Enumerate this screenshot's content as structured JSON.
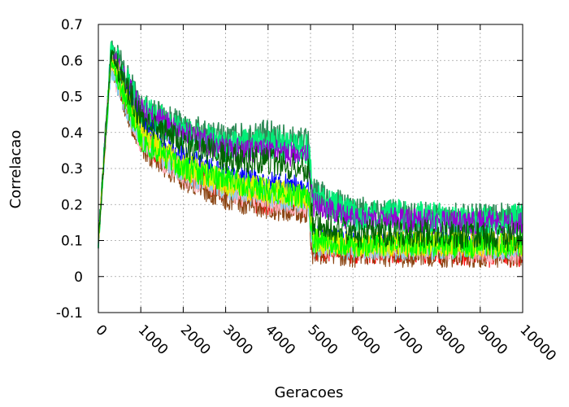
{
  "chart_data": {
    "type": "line",
    "xlabel": "Geracoes",
    "ylabel": "Correlacao",
    "xlim": [
      0,
      10000
    ],
    "ylim": [
      -0.1,
      0.7
    ],
    "x_ticks": [
      0,
      1000,
      2000,
      3000,
      4000,
      5000,
      6000,
      7000,
      8000,
      9000,
      10000
    ],
    "x_tick_labels": [
      "0",
      "1000",
      "2000",
      "3000",
      "4000",
      "5000",
      "6000",
      "7000",
      "8000",
      "9000",
      "10000"
    ],
    "y_ticks": [
      -0.1,
      0,
      0.1,
      0.2,
      0.3,
      0.4,
      0.5,
      0.6,
      0.7
    ],
    "y_tick_labels": [
      "-0.1",
      "0",
      "0.1",
      "0.2",
      "0.3",
      "0.4",
      "0.5",
      "0.6",
      "0.7"
    ],
    "x_tick_label_rotation_deg": 45,
    "grid": true,
    "grid_style": "dotted",
    "legend": "none",
    "series": [
      {
        "color": "#2e8b57",
        "x": [
          0,
          300,
          1000,
          2000,
          3000,
          4000,
          4950,
          5050,
          6000,
          7000,
          8000,
          9000,
          10000
        ],
        "y": [
          0.1,
          0.64,
          0.47,
          0.41,
          0.38,
          0.39,
          0.37,
          0.23,
          0.18,
          0.17,
          0.16,
          0.16,
          0.16
        ]
      },
      {
        "color": "#00ee77",
        "x": [
          0,
          300,
          1000,
          2000,
          3000,
          4000,
          4950,
          5050,
          6000,
          7000,
          8000,
          9000,
          10000
        ],
        "y": [
          0.1,
          0.63,
          0.46,
          0.4,
          0.36,
          0.37,
          0.35,
          0.22,
          0.17,
          0.17,
          0.16,
          0.15,
          0.16
        ]
      },
      {
        "color": "#006400",
        "x": [
          0,
          300,
          1000,
          2000,
          3000,
          4000,
          4950,
          5050,
          6000,
          7000,
          8000,
          9000,
          10000
        ],
        "y": [
          0.1,
          0.62,
          0.44,
          0.37,
          0.33,
          0.32,
          0.3,
          0.15,
          0.12,
          0.12,
          0.12,
          0.11,
          0.11
        ]
      },
      {
        "color": "#9400d3",
        "x": [
          0,
          300,
          1000,
          2000,
          3000,
          4000,
          4950,
          5050,
          6000,
          7000,
          8000,
          9000,
          10000
        ],
        "y": [
          0.1,
          0.62,
          0.46,
          0.4,
          0.35,
          0.35,
          0.33,
          0.2,
          0.16,
          0.16,
          0.15,
          0.15,
          0.15
        ]
      },
      {
        "color": "#0000ff",
        "x": [
          0,
          300,
          1000,
          2000,
          3000,
          4000,
          4950,
          5050,
          6000,
          7000,
          8000,
          9000,
          10000
        ],
        "y": [
          0.1,
          0.6,
          0.42,
          0.33,
          0.28,
          0.26,
          0.24,
          0.11,
          0.09,
          0.09,
          0.09,
          0.08,
          0.08
        ]
      },
      {
        "color": "#ff0000",
        "x": [
          0,
          300,
          1000,
          2000,
          3000,
          4000,
          4950,
          5050,
          6000,
          7000,
          8000,
          9000,
          10000
        ],
        "y": [
          0.1,
          0.6,
          0.38,
          0.29,
          0.24,
          0.2,
          0.2,
          0.08,
          0.07,
          0.07,
          0.07,
          0.06,
          0.06
        ]
      },
      {
        "color": "#8b4513",
        "x": [
          0,
          300,
          1000,
          2000,
          3000,
          4000,
          4950,
          5050,
          6000,
          7000,
          8000,
          9000,
          10000
        ],
        "y": [
          0.1,
          0.58,
          0.36,
          0.27,
          0.22,
          0.19,
          0.18,
          0.07,
          0.06,
          0.06,
          0.06,
          0.06,
          0.06
        ]
      },
      {
        "color": "#ffb6c1",
        "x": [
          0,
          300,
          1000,
          2000,
          3000,
          4000,
          4950,
          5050,
          6000,
          7000,
          8000,
          9000,
          10000
        ],
        "y": [
          0.1,
          0.58,
          0.37,
          0.28,
          0.24,
          0.21,
          0.2,
          0.09,
          0.08,
          0.08,
          0.08,
          0.07,
          0.07
        ]
      },
      {
        "color": "#87ceeb",
        "x": [
          0,
          300,
          1000,
          2000,
          3000,
          4000,
          4950,
          5050,
          6000,
          7000,
          8000,
          9000,
          10000
        ],
        "y": [
          0.1,
          0.57,
          0.38,
          0.29,
          0.25,
          0.22,
          0.21,
          0.09,
          0.08,
          0.08,
          0.08,
          0.08,
          0.08
        ]
      },
      {
        "color": "#ffd700",
        "x": [
          0,
          300,
          1000,
          2000,
          3000,
          4000,
          4950,
          5050,
          6000,
          7000,
          8000,
          9000,
          10000
        ],
        "y": [
          0.1,
          0.6,
          0.39,
          0.3,
          0.26,
          0.23,
          0.22,
          0.1,
          0.09,
          0.09,
          0.09,
          0.09,
          0.09
        ]
      },
      {
        "color": "#ccff00",
        "x": [
          0,
          300,
          1000,
          2000,
          3000,
          4000,
          4950,
          5050,
          6000,
          7000,
          8000,
          9000,
          10000
        ],
        "y": [
          0.1,
          0.61,
          0.4,
          0.31,
          0.26,
          0.24,
          0.22,
          0.1,
          0.09,
          0.09,
          0.09,
          0.09,
          0.09
        ]
      },
      {
        "color": "#00ff00",
        "x": [
          0,
          300,
          1000,
          2000,
          3000,
          4000,
          4950,
          5050,
          6000,
          7000,
          8000,
          9000,
          10000
        ],
        "y": [
          0.1,
          0.6,
          0.38,
          0.3,
          0.27,
          0.24,
          0.22,
          0.1,
          0.09,
          0.09,
          0.09,
          0.08,
          0.09
        ]
      }
    ]
  }
}
